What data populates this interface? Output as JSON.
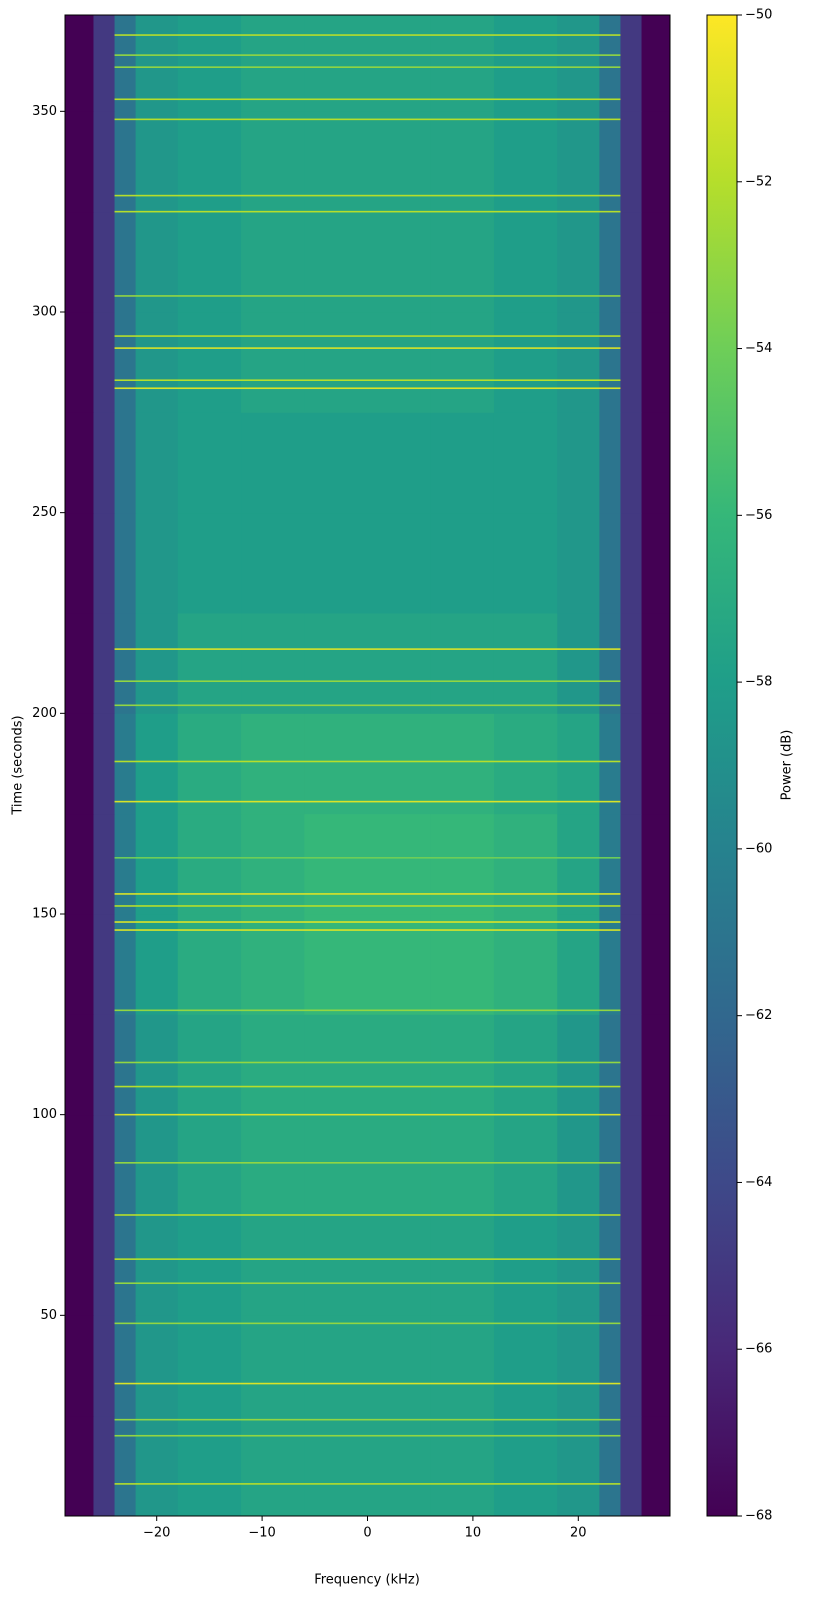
{
  "chart_data": {
    "type": "spectrogram",
    "xlabel": "Frequency (kHz)",
    "ylabel": "Time (seconds)",
    "colorbar_label": "Power (dB)",
    "colormap": [
      "#440154",
      "#482878",
      "#3e4989",
      "#31688e",
      "#26828e",
      "#1f9e89",
      "#35b779",
      "#6ece58",
      "#b5de2b",
      "#fde725"
    ],
    "x_edges": [
      -28.7,
      -26,
      -24,
      -22,
      -18,
      -12,
      -6,
      0,
      6,
      12,
      18,
      22,
      24,
      26,
      28.7
    ],
    "y_edges": [
      0,
      25,
      50,
      75,
      100,
      125,
      150,
      175,
      200,
      225,
      250,
      275,
      300,
      325,
      350,
      374
    ],
    "values": [
      [
        -68,
        -65,
        -61,
        -58.5,
        -58,
        -57.5,
        -57.5,
        -57.5,
        -57.5,
        -58,
        -58.5,
        -61,
        -65,
        -68
      ],
      [
        -68,
        -65,
        -61,
        -58.5,
        -58,
        -57.5,
        -57.5,
        -57.5,
        -57.5,
        -58,
        -58.5,
        -61,
        -65,
        -68
      ],
      [
        -68,
        -65,
        -61,
        -58.5,
        -58,
        -57.5,
        -57.5,
        -57.5,
        -57.5,
        -58,
        -58.5,
        -61,
        -65,
        -68
      ],
      [
        -68,
        -65,
        -61,
        -58.5,
        -57.5,
        -57,
        -57,
        -57,
        -57,
        -57.5,
        -58.5,
        -61,
        -65,
        -68
      ],
      [
        -68,
        -65,
        -61,
        -58.5,
        -57.5,
        -57,
        -57,
        -57,
        -57,
        -57.5,
        -58.5,
        -61,
        -65,
        -68
      ],
      [
        -68,
        -65,
        -60.5,
        -58,
        -57,
        -56.5,
        -56,
        -56,
        -56,
        -56.5,
        -57.5,
        -60.5,
        -65,
        -68
      ],
      [
        -68,
        -65,
        -60.5,
        -58,
        -57,
        -56.5,
        -56,
        -56,
        -56,
        -56.5,
        -57.5,
        -60.5,
        -65,
        -68
      ],
      [
        -68,
        -65,
        -60.5,
        -58,
        -57,
        -56.5,
        -56.5,
        -56.5,
        -56.5,
        -57,
        -57.5,
        -60.5,
        -65,
        -68
      ],
      [
        -68,
        -65,
        -61,
        -58.5,
        -57.5,
        -57.5,
        -57.5,
        -57.5,
        -57.5,
        -57.5,
        -58.5,
        -61,
        -65,
        -68
      ],
      [
        -68,
        -65,
        -61,
        -58.5,
        -58,
        -58,
        -58,
        -58,
        -58,
        -58,
        -58.5,
        -61,
        -65,
        -68
      ],
      [
        -68,
        -65,
        -61,
        -58.5,
        -58,
        -58,
        -58,
        -58,
        -58,
        -58,
        -58.5,
        -61,
        -65,
        -68
      ],
      [
        -68,
        -65,
        -61,
        -58.5,
        -58,
        -57.5,
        -57.5,
        -57.5,
        -57.5,
        -58,
        -58.5,
        -61,
        -65,
        -68
      ],
      [
        -68,
        -65,
        -61,
        -58.5,
        -58,
        -57.5,
        -57.5,
        -57.5,
        -57.5,
        -58,
        -58.5,
        -61,
        -65,
        -68
      ],
      [
        -68,
        -65,
        -61,
        -58.5,
        -58,
        -57.5,
        -57.5,
        -57.5,
        -57.5,
        -58,
        -58.5,
        -61,
        -65,
        -68
      ],
      [
        -68,
        -65,
        -61,
        -58.5,
        -58,
        -57.5,
        -57.5,
        -57.5,
        -57.5,
        -58,
        -58.5,
        -61,
        -65,
        -68
      ]
    ],
    "line_times": [
      8,
      20,
      24,
      33,
      48,
      58,
      64,
      75,
      88,
      100,
      107,
      113,
      126,
      146,
      148,
      152,
      155,
      164,
      178,
      188,
      202,
      208,
      216,
      281,
      283,
      291,
      294,
      304,
      325,
      329,
      348,
      353,
      361,
      364,
      369
    ],
    "line_power": [
      -52,
      -53,
      -53,
      -51,
      -53,
      -53,
      -52,
      -52,
      -53,
      -51,
      -52,
      -53,
      -53,
      -51,
      -51,
      -52,
      -51,
      -54,
      -51,
      -52,
      -53,
      -53,
      -51,
      -51,
      -52,
      -51,
      -52,
      -53,
      -52,
      -52,
      -52,
      -52,
      -53,
      -53,
      -52
    ],
    "xlim": [
      -28.7,
      28.7
    ],
    "ylim": [
      0,
      374
    ],
    "clim": [
      -68,
      -50
    ],
    "xticks": [
      {
        "value": -20,
        "label": "−20"
      },
      {
        "value": -10,
        "label": "−10"
      },
      0,
      10,
      20
    ],
    "yticks": [
      50,
      100,
      150,
      200,
      250,
      300,
      350
    ],
    "cticks": [
      {
        "value": -68,
        "label": "−68"
      },
      {
        "value": -66,
        "label": "−66"
      },
      {
        "value": -64,
        "label": "−64"
      },
      {
        "value": -62,
        "label": "−62"
      },
      {
        "value": -60,
        "label": "−60"
      },
      {
        "value": -58,
        "label": "−58"
      },
      {
        "value": -56,
        "label": "−56"
      },
      {
        "value": -54,
        "label": "−54"
      },
      {
        "value": -52,
        "label": "−52"
      },
      {
        "value": -50,
        "label": "−50"
      }
    ]
  }
}
